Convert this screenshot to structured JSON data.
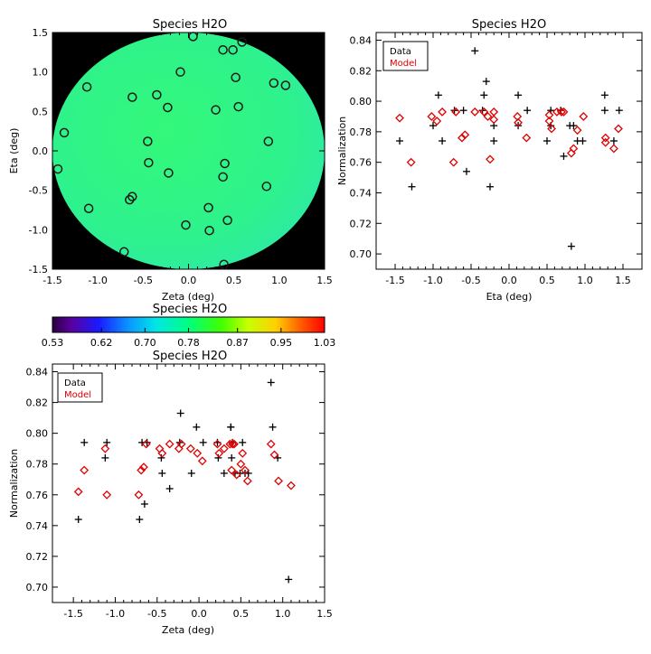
{
  "chart_data": [
    {
      "type": "heatmap",
      "id": "map",
      "title": "Species H2O",
      "xlabel": "Zeta (deg)",
      "ylabel": "Eta (deg)",
      "xlim": [
        -1.5,
        1.5
      ],
      "ylim": [
        -1.5,
        1.5
      ],
      "xticks": [
        "-1.5",
        "-1.0",
        "-0.5",
        "0.0",
        "0.5",
        "1.0",
        "1.5"
      ],
      "yticks": [
        "-1.5",
        "-1.0",
        "-0.5",
        "0.0",
        "0.5",
        "1.0",
        "1.5"
      ],
      "field_value": 0.8,
      "points": [
        [
          -1.44,
          -0.23
        ],
        [
          -1.37,
          0.23
        ],
        [
          -1.12,
          0.81
        ],
        [
          -1.1,
          -0.73
        ],
        [
          -0.71,
          -1.28
        ],
        [
          -0.65,
          -0.62
        ],
        [
          -0.62,
          -0.58
        ],
        [
          -0.62,
          0.68
        ],
        [
          -0.45,
          0.12
        ],
        [
          -0.44,
          -0.15
        ],
        [
          -0.35,
          0.71
        ],
        [
          -0.23,
          0.55
        ],
        [
          -0.22,
          -0.28
        ],
        [
          -0.09,
          1.0
        ],
        [
          -0.03,
          -0.94
        ],
        [
          0.05,
          1.45
        ],
        [
          0.22,
          -0.72
        ],
        [
          0.23,
          -1.01
        ],
        [
          0.3,
          0.52
        ],
        [
          0.38,
          1.28
        ],
        [
          0.38,
          -0.33
        ],
        [
          0.39,
          -1.44
        ],
        [
          0.4,
          -0.16
        ],
        [
          0.43,
          -0.88
        ],
        [
          0.49,
          1.28
        ],
        [
          0.52,
          0.93
        ],
        [
          0.55,
          0.56
        ],
        [
          0.59,
          1.38
        ],
        [
          0.86,
          -0.45
        ],
        [
          0.88,
          0.12
        ],
        [
          0.94,
          0.86
        ],
        [
          1.07,
          0.83
        ]
      ]
    },
    {
      "type": "colorbar",
      "id": "colorbar",
      "title": "Species H2O",
      "min": 0.53,
      "max": 1.03,
      "ticks": [
        "0.53",
        "0.62",
        "0.70",
        "0.78",
        "0.87",
        "0.95",
        "1.03"
      ]
    },
    {
      "type": "scatter",
      "id": "eta",
      "title": "Species H2O",
      "xlabel": "Eta (deg)",
      "ylabel": "Normalization",
      "xlim": [
        -1.75,
        1.75
      ],
      "ylim": [
        0.69,
        0.845
      ],
      "xticks": [
        "-1.5",
        "-1.0",
        "-0.5",
        "0.0",
        "0.5",
        "1.0",
        "1.5"
      ],
      "yticks": [
        "0.70",
        "0.72",
        "0.74",
        "0.76",
        "0.78",
        "0.80",
        "0.82",
        "0.84"
      ],
      "legend": "top-left",
      "series": [
        {
          "name": "Data",
          "marker": "plus",
          "color": "#000000",
          "points": [
            [
              -1.44,
              0.774
            ],
            [
              -1.28,
              0.744
            ],
            [
              -1.0,
              0.784
            ],
            [
              -0.93,
              0.804
            ],
            [
              -0.88,
              0.774
            ],
            [
              -0.72,
              0.794
            ],
            [
              -0.6,
              0.794
            ],
            [
              -0.56,
              0.754
            ],
            [
              -0.45,
              0.833
            ],
            [
              -0.35,
              0.794
            ],
            [
              -0.33,
              0.804
            ],
            [
              -0.3,
              0.813
            ],
            [
              -0.25,
              0.744
            ],
            [
              -0.2,
              0.784
            ],
            [
              -0.2,
              0.774
            ],
            [
              0.12,
              0.804
            ],
            [
              0.12,
              0.784
            ],
            [
              0.24,
              0.794
            ],
            [
              0.5,
              0.774
            ],
            [
              0.55,
              0.784
            ],
            [
              0.55,
              0.794
            ],
            [
              0.68,
              0.794
            ],
            [
              0.72,
              0.764
            ],
            [
              0.8,
              0.784
            ],
            [
              0.82,
              0.705
            ],
            [
              0.85,
              0.784
            ],
            [
              0.9,
              0.774
            ],
            [
              0.97,
              0.774
            ],
            [
              1.26,
              0.804
            ],
            [
              1.26,
              0.794
            ],
            [
              1.38,
              0.774
            ],
            [
              1.45,
              0.794
            ]
          ]
        },
        {
          "name": "Model",
          "marker": "diamond",
          "color": "#e00000",
          "points": [
            [
              -1.44,
              0.789
            ],
            [
              -1.29,
              0.76
            ],
            [
              -1.02,
              0.79
            ],
            [
              -0.95,
              0.787
            ],
            [
              -0.88,
              0.793
            ],
            [
              -0.73,
              0.76
            ],
            [
              -0.7,
              0.793
            ],
            [
              -0.62,
              0.776
            ],
            [
              -0.58,
              0.778
            ],
            [
              -0.45,
              0.793
            ],
            [
              -0.33,
              0.793
            ],
            [
              -0.28,
              0.79
            ],
            [
              -0.25,
              0.762
            ],
            [
              -0.2,
              0.793
            ],
            [
              -0.2,
              0.788
            ],
            [
              0.11,
              0.79
            ],
            [
              0.12,
              0.786
            ],
            [
              0.23,
              0.776
            ],
            [
              0.53,
              0.787
            ],
            [
              0.53,
              0.791
            ],
            [
              0.56,
              0.782
            ],
            [
              0.63,
              0.793
            ],
            [
              0.69,
              0.793
            ],
            [
              0.72,
              0.793
            ],
            [
              0.82,
              0.766
            ],
            [
              0.85,
              0.769
            ],
            [
              0.9,
              0.781
            ],
            [
              0.98,
              0.79
            ],
            [
              1.27,
              0.776
            ],
            [
              1.27,
              0.773
            ],
            [
              1.38,
              0.769
            ],
            [
              1.44,
              0.782
            ]
          ]
        }
      ]
    },
    {
      "type": "scatter",
      "id": "zeta",
      "title": "Species H2O",
      "xlabel": "Zeta (deg)",
      "ylabel": "Normalization",
      "xlim": [
        -1.75,
        1.5
      ],
      "ylim": [
        0.69,
        0.845
      ],
      "xticks": [
        "-1.5",
        "-1.0",
        "-0.5",
        "0.0",
        "0.5",
        "1.0",
        "1.5"
      ],
      "yticks": [
        "0.70",
        "0.72",
        "0.74",
        "0.76",
        "0.78",
        "0.80",
        "0.82",
        "0.84"
      ],
      "legend": "top-left",
      "series": [
        {
          "name": "Data",
          "marker": "plus",
          "color": "#000000",
          "points": [
            [
              -1.44,
              0.744
            ],
            [
              -1.37,
              0.794
            ],
            [
              -1.12,
              0.784
            ],
            [
              -1.1,
              0.794
            ],
            [
              -0.71,
              0.744
            ],
            [
              -0.68,
              0.794
            ],
            [
              -0.65,
              0.754
            ],
            [
              -0.62,
              0.794
            ],
            [
              -0.45,
              0.784
            ],
            [
              -0.44,
              0.774
            ],
            [
              -0.35,
              0.764
            ],
            [
              -0.23,
              0.794
            ],
            [
              -0.22,
              0.813
            ],
            [
              -0.09,
              0.774
            ],
            [
              -0.03,
              0.804
            ],
            [
              0.05,
              0.794
            ],
            [
              0.22,
              0.794
            ],
            [
              0.23,
              0.784
            ],
            [
              0.3,
              0.774
            ],
            [
              0.38,
              0.804
            ],
            [
              0.38,
              0.804
            ],
            [
              0.39,
              0.784
            ],
            [
              0.4,
              0.794
            ],
            [
              0.43,
              0.774
            ],
            [
              0.49,
              0.774
            ],
            [
              0.52,
              0.794
            ],
            [
              0.55,
              0.774
            ],
            [
              0.59,
              0.774
            ],
            [
              0.86,
              0.833
            ],
            [
              0.88,
              0.804
            ],
            [
              0.94,
              0.784
            ],
            [
              1.07,
              0.705
            ]
          ]
        },
        {
          "name": "Model",
          "marker": "diamond",
          "color": "#e00000",
          "points": [
            [
              -1.44,
              0.762
            ],
            [
              -1.37,
              0.776
            ],
            [
              -1.12,
              0.79
            ],
            [
              -1.1,
              0.76
            ],
            [
              -0.72,
              0.76
            ],
            [
              -0.69,
              0.776
            ],
            [
              -0.66,
              0.778
            ],
            [
              -0.63,
              0.793
            ],
            [
              -0.47,
              0.79
            ],
            [
              -0.44,
              0.787
            ],
            [
              -0.35,
              0.793
            ],
            [
              -0.24,
              0.79
            ],
            [
              -0.21,
              0.793
            ],
            [
              -0.1,
              0.79
            ],
            [
              -0.02,
              0.787
            ],
            [
              0.04,
              0.782
            ],
            [
              0.22,
              0.793
            ],
            [
              0.24,
              0.787
            ],
            [
              0.3,
              0.79
            ],
            [
              0.37,
              0.793
            ],
            [
              0.39,
              0.776
            ],
            [
              0.4,
              0.793
            ],
            [
              0.42,
              0.793
            ],
            [
              0.45,
              0.773
            ],
            [
              0.5,
              0.78
            ],
            [
              0.52,
              0.787
            ],
            [
              0.55,
              0.776
            ],
            [
              0.58,
              0.769
            ],
            [
              0.86,
              0.793
            ],
            [
              0.9,
              0.786
            ],
            [
              0.95,
              0.769
            ],
            [
              1.1,
              0.766
            ]
          ]
        }
      ]
    }
  ]
}
